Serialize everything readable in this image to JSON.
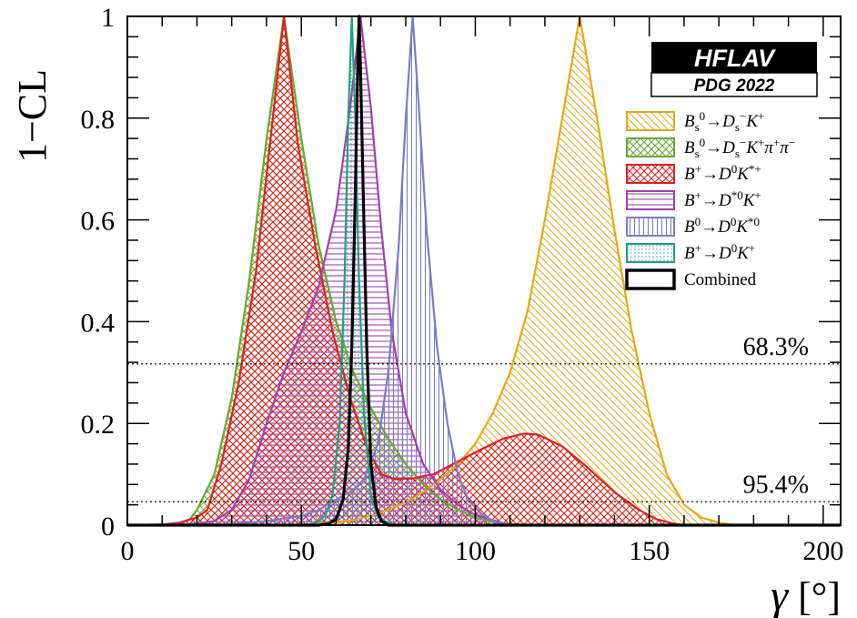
{
  "chart_data": {
    "type": "line",
    "ylabel": "1−CL",
    "xlabel_symbol": "γ",
    "xlabel_unit": "[°]",
    "xlim": [
      0,
      205
    ],
    "ylim": [
      0,
      1
    ],
    "x_ticks": [
      "0",
      "50",
      "100",
      "150",
      "200"
    ],
    "y_ticks": [
      "0",
      "0.2",
      "0.4",
      "0.6",
      "0.8",
      "1"
    ],
    "reference_lines": [
      {
        "label": "68.3%",
        "y": 0.317
      },
      {
        "label": "95.4%",
        "y": 0.046
      }
    ],
    "badge": {
      "title": "HFLAV",
      "subtitle": "PDG 2022"
    },
    "series": [
      {
        "name": "Bs0 -> Ds- K+",
        "color": "#e6a817",
        "hatch": "diag-back",
        "points": [
          [
            0,
            0
          ],
          [
            50,
            0
          ],
          [
            55,
            0.004
          ],
          [
            60,
            0.006
          ],
          [
            65,
            0.01
          ],
          [
            70,
            0.018
          ],
          [
            75,
            0.03
          ],
          [
            80,
            0.045
          ],
          [
            85,
            0.065
          ],
          [
            90,
            0.09
          ],
          [
            95,
            0.12
          ],
          [
            100,
            0.16
          ],
          [
            105,
            0.22
          ],
          [
            110,
            0.3
          ],
          [
            115,
            0.42
          ],
          [
            120,
            0.6
          ],
          [
            125,
            0.8
          ],
          [
            130,
            1.0
          ],
          [
            135,
            0.8
          ],
          [
            140,
            0.58
          ],
          [
            145,
            0.38
          ],
          [
            150,
            0.22
          ],
          [
            155,
            0.1
          ],
          [
            160,
            0.04
          ],
          [
            165,
            0.015
          ],
          [
            170,
            0.005
          ],
          [
            175,
            0
          ],
          [
            205,
            0
          ]
        ]
      },
      {
        "name": "Bs0 -> Ds- K+ pi+ pi-",
        "color": "#6aa832",
        "hatch": "cross",
        "points": [
          [
            0,
            0
          ],
          [
            10,
            0.001
          ],
          [
            15,
            0.004
          ],
          [
            18,
            0.012
          ],
          [
            20,
            0.03
          ],
          [
            25,
            0.1
          ],
          [
            30,
            0.25
          ],
          [
            35,
            0.48
          ],
          [
            40,
            0.76
          ],
          [
            45,
            1.0
          ],
          [
            50,
            0.76
          ],
          [
            55,
            0.55
          ],
          [
            60,
            0.4
          ],
          [
            65,
            0.3
          ],
          [
            70,
            0.23
          ],
          [
            75,
            0.17
          ],
          [
            80,
            0.12
          ],
          [
            85,
            0.08
          ],
          [
            90,
            0.05
          ],
          [
            95,
            0.03
          ],
          [
            100,
            0.015
          ],
          [
            105,
            0.006
          ],
          [
            110,
            0.002
          ],
          [
            115,
            0
          ],
          [
            205,
            0
          ]
        ]
      },
      {
        "name": "B+ -> D0 K*+",
        "color": "#e02020",
        "hatch": "cross",
        "points": [
          [
            0,
            0
          ],
          [
            10,
            0.001
          ],
          [
            15,
            0.005
          ],
          [
            20,
            0.015
          ],
          [
            23,
            0.03
          ],
          [
            27,
            0.12
          ],
          [
            32,
            0.28
          ],
          [
            37,
            0.5
          ],
          [
            41,
            0.75
          ],
          [
            45,
            1.0
          ],
          [
            49,
            0.75
          ],
          [
            54,
            0.55
          ],
          [
            59,
            0.38
          ],
          [
            64,
            0.25
          ],
          [
            69,
            0.15
          ],
          [
            73,
            0.1
          ],
          [
            77,
            0.09
          ],
          [
            82,
            0.092
          ],
          [
            88,
            0.1
          ],
          [
            95,
            0.125
          ],
          [
            102,
            0.15
          ],
          [
            108,
            0.17
          ],
          [
            114,
            0.18
          ],
          [
            118,
            0.178
          ],
          [
            125,
            0.155
          ],
          [
            132,
            0.115
          ],
          [
            140,
            0.065
          ],
          [
            147,
            0.03
          ],
          [
            152,
            0.012
          ],
          [
            157,
            0.003
          ],
          [
            160,
            0
          ],
          [
            205,
            0
          ]
        ]
      },
      {
        "name": "B+ -> D*0 K+",
        "color": "#a040b0",
        "hatch": "horizontal",
        "points": [
          [
            0,
            0
          ],
          [
            10,
            0.001
          ],
          [
            20,
            0.003
          ],
          [
            25,
            0.008
          ],
          [
            30,
            0.03
          ],
          [
            35,
            0.09
          ],
          [
            40,
            0.2
          ],
          [
            45,
            0.3
          ],
          [
            50,
            0.38
          ],
          [
            55,
            0.47
          ],
          [
            60,
            0.62
          ],
          [
            64,
            0.82
          ],
          [
            67,
            1.0
          ],
          [
            70,
            0.82
          ],
          [
            73,
            0.58
          ],
          [
            76,
            0.38
          ],
          [
            80,
            0.22
          ],
          [
            85,
            0.12
          ],
          [
            90,
            0.07
          ],
          [
            95,
            0.04
          ],
          [
            100,
            0.02
          ],
          [
            105,
            0.01
          ],
          [
            110,
            0
          ],
          [
            205,
            0
          ]
        ]
      },
      {
        "name": "B0 -> D0 K*0",
        "color": "#7b7bc8",
        "hatch": "vertical",
        "points": [
          [
            0,
            0
          ],
          [
            30,
            0.002
          ],
          [
            40,
            0.008
          ],
          [
            50,
            0.018
          ],
          [
            55,
            0.03
          ],
          [
            60,
            0.05
          ],
          [
            65,
            0.07
          ],
          [
            68,
            0.09
          ],
          [
            72,
            0.16
          ],
          [
            75,
            0.3
          ],
          [
            78,
            0.55
          ],
          [
            80,
            0.8
          ],
          [
            82,
            1.0
          ],
          [
            84,
            0.8
          ],
          [
            86,
            0.58
          ],
          [
            89,
            0.35
          ],
          [
            92,
            0.2
          ],
          [
            95,
            0.1
          ],
          [
            98,
            0.05
          ],
          [
            102,
            0.02
          ],
          [
            106,
            0.006
          ],
          [
            110,
            0
          ],
          [
            205,
            0
          ]
        ]
      },
      {
        "name": "B+ -> D0 K+",
        "color": "#20a080",
        "hatch": "dots",
        "points": [
          [
            0,
            0
          ],
          [
            50,
            0
          ],
          [
            53,
            0.002
          ],
          [
            55,
            0.008
          ],
          [
            57,
            0.02
          ],
          [
            59,
            0.06
          ],
          [
            61,
            0.2
          ],
          [
            62.5,
            0.5
          ],
          [
            63.5,
            0.8
          ],
          [
            64.5,
            1.0
          ],
          [
            65.5,
            0.8
          ],
          [
            66.5,
            0.5
          ],
          [
            68,
            0.22
          ],
          [
            70,
            0.06
          ],
          [
            72,
            0.018
          ],
          [
            75,
            0.004
          ],
          [
            78,
            0
          ],
          [
            205,
            0
          ]
        ]
      },
      {
        "name": "Combined",
        "color": "#000000",
        "hatch": "none",
        "points": [
          [
            0,
            0
          ],
          [
            55,
            0
          ],
          [
            58,
            0.003
          ],
          [
            60,
            0.012
          ],
          [
            62,
            0.05
          ],
          [
            63.5,
            0.15
          ],
          [
            64.5,
            0.35
          ],
          [
            65.5,
            0.65
          ],
          [
            66.2,
            0.9
          ],
          [
            66.6,
            1.0
          ],
          [
            67,
            0.9
          ],
          [
            67.8,
            0.65
          ],
          [
            68.8,
            0.35
          ],
          [
            70,
            0.12
          ],
          [
            71.5,
            0.035
          ],
          [
            73,
            0.008
          ],
          [
            75,
            0
          ],
          [
            205,
            0
          ]
        ]
      }
    ],
    "legend": [
      {
        "series": 0,
        "parts": [
          [
            "B",
            "n"
          ],
          [
            "s",
            "sub"
          ],
          [
            "0",
            "sup"
          ],
          [
            "→D",
            "n"
          ],
          [
            "s",
            "sub"
          ],
          [
            "−",
            "sup"
          ],
          [
            "K",
            "n"
          ],
          [
            "+",
            "sup"
          ]
        ]
      },
      {
        "series": 1,
        "parts": [
          [
            "B",
            "n"
          ],
          [
            "s",
            "sub"
          ],
          [
            "0",
            "sup"
          ],
          [
            "→D",
            "n"
          ],
          [
            "s",
            "sub"
          ],
          [
            "−",
            "sup"
          ],
          [
            "K",
            "n"
          ],
          [
            "+",
            "sup"
          ],
          [
            "π",
            "n"
          ],
          [
            "+",
            "sup"
          ],
          [
            "π",
            "n"
          ],
          [
            "−",
            "sup"
          ]
        ]
      },
      {
        "series": 2,
        "parts": [
          [
            "B",
            "n"
          ],
          [
            "+",
            "sup"
          ],
          [
            "→D",
            "n"
          ],
          [
            "0",
            "sup"
          ],
          [
            "K",
            "n"
          ],
          [
            "*+",
            "sup"
          ]
        ]
      },
      {
        "series": 3,
        "parts": [
          [
            "B",
            "n"
          ],
          [
            "+",
            "sup"
          ],
          [
            "→D",
            "n"
          ],
          [
            "*0",
            "sup"
          ],
          [
            "K",
            "n"
          ],
          [
            "+",
            "sup"
          ]
        ]
      },
      {
        "series": 4,
        "parts": [
          [
            "B",
            "n"
          ],
          [
            "0",
            "sup"
          ],
          [
            "→D",
            "n"
          ],
          [
            "0",
            "sup"
          ],
          [
            "K",
            "n"
          ],
          [
            "*0",
            "sup"
          ]
        ]
      },
      {
        "series": 5,
        "parts": [
          [
            "B",
            "n"
          ],
          [
            "+",
            "sup"
          ],
          [
            "→D",
            "n"
          ],
          [
            "0",
            "sup"
          ],
          [
            "K",
            "n"
          ],
          [
            "+",
            "sup"
          ]
        ]
      },
      {
        "series": 6,
        "parts": [
          [
            "Combined",
            "plain"
          ]
        ]
      }
    ]
  }
}
